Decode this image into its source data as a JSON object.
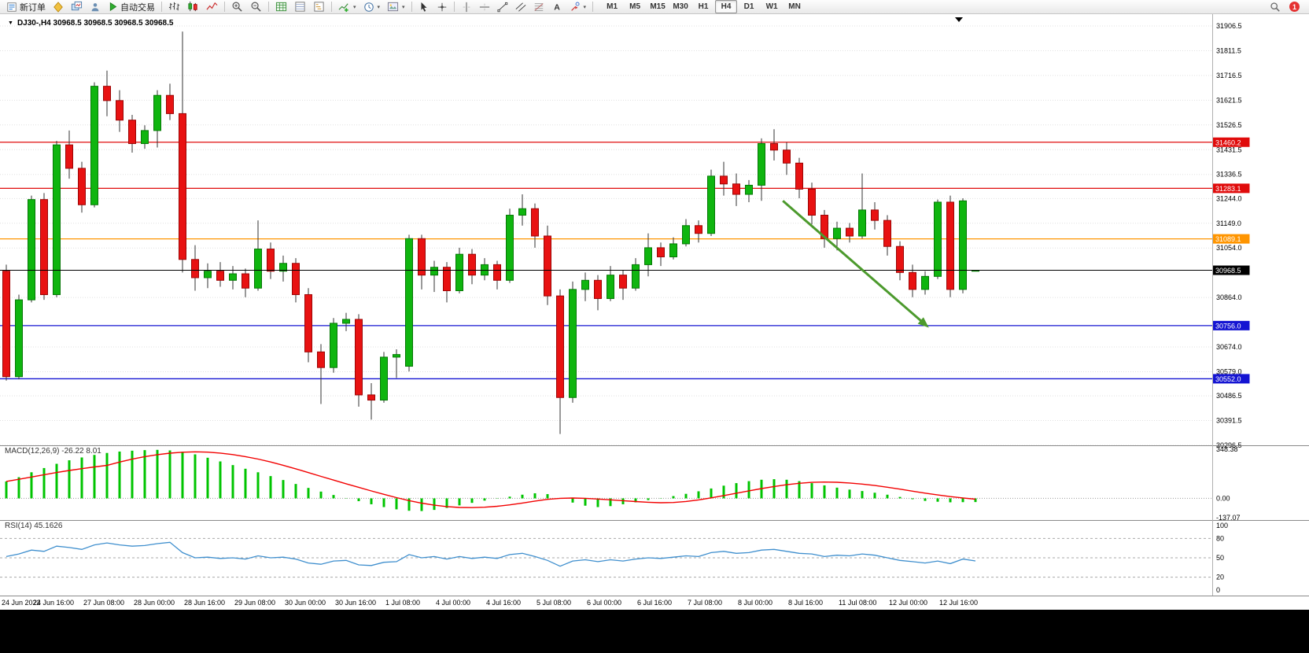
{
  "toolbar": {
    "new_order_label": "新订单",
    "autotrading_label": "自动交易",
    "timeframes": [
      "M1",
      "M5",
      "M15",
      "M30",
      "H1",
      "H4",
      "D1",
      "W1",
      "MN"
    ],
    "active_timeframe": "H4",
    "notification_count": "1"
  },
  "chart_data": {
    "type": "candlestick",
    "symbol": "DJ30-",
    "timeframe": "H4",
    "title": "DJ30-,H4 30968.5 30968.5 30968.5 30968.5",
    "current_price": "30968.5",
    "ylim": [
      30296.5,
      31906.5
    ],
    "y_ticks": [
      "31906.5",
      "31811.5",
      "31716.5",
      "31621.5",
      "31526.5",
      "31431.5",
      "31336.5",
      "31244.0",
      "31149.0",
      "31054.0",
      "30864.0",
      "30674.0",
      "30579.0",
      "30486.5",
      "30391.5",
      "30296.5"
    ],
    "time_labels": [
      "24 Jun 2022",
      "24 Jun 16:00",
      "27 Jun 08:00",
      "28 Jun 00:00",
      "28 Jun 16:00",
      "29 Jun 08:00",
      "30 Jun 00:00",
      "30 Jun 16:00",
      "1 Jul 08:00",
      "4 Jul 00:00",
      "4 Jul 16:00",
      "5 Jul 08:00",
      "6 Jul 00:00",
      "6 Jul 16:00",
      "7 Jul 08:00",
      "8 Jul 00:00",
      "8 Jul 16:00",
      "11 Jul 08:00",
      "12 Jul 00:00",
      "12 Jul 16:00"
    ],
    "label_every": 4,
    "colors": {
      "up": "#0fb50f",
      "up_border": "#067806",
      "down": "#e81212",
      "down_border": "#9c0505",
      "wick": "#333333",
      "macd": "#00c400",
      "macd_signal": "#f20000",
      "rsi": "#3f8fce",
      "grid": "#e0e0e0"
    },
    "candles": [
      [
        30965,
        30990,
        30545,
        30560
      ],
      [
        30560,
        30875,
        30550,
        30855
      ],
      [
        30855,
        31255,
        30845,
        31240
      ],
      [
        31240,
        31265,
        30855,
        30875
      ],
      [
        30875,
        31465,
        30865,
        31450
      ],
      [
        31450,
        31505,
        31320,
        31360
      ],
      [
        31360,
        31385,
        31190,
        31220
      ],
      [
        31220,
        31690,
        31210,
        31675
      ],
      [
        31675,
        31735,
        31560,
        31620
      ],
      [
        31620,
        31660,
        31500,
        31545
      ],
      [
        31545,
        31565,
        31420,
        31455
      ],
      [
        31455,
        31525,
        31435,
        31505
      ],
      [
        31505,
        31660,
        31440,
        31640
      ],
      [
        31640,
        31685,
        31545,
        31570
      ],
      [
        31570,
        31885,
        30960,
        31010
      ],
      [
        31010,
        31065,
        30890,
        30940
      ],
      [
        30940,
        30995,
        30900,
        30965
      ],
      [
        30965,
        31000,
        30905,
        30930
      ],
      [
        30930,
        30985,
        30895,
        30955
      ],
      [
        30955,
        30975,
        30865,
        30900
      ],
      [
        30900,
        31160,
        30890,
        31050
      ],
      [
        31050,
        31075,
        30935,
        30965
      ],
      [
        30965,
        31025,
        30925,
        30995
      ],
      [
        30995,
        31015,
        30845,
        30875
      ],
      [
        30875,
        30900,
        30615,
        30655
      ],
      [
        30655,
        30685,
        30455,
        30595
      ],
      [
        30595,
        30785,
        30575,
        30765
      ],
      [
        30765,
        30805,
        30735,
        30780
      ],
      [
        30780,
        30800,
        30445,
        30490
      ],
      [
        30490,
        30535,
        30395,
        30470
      ],
      [
        30470,
        30655,
        30460,
        30635
      ],
      [
        30635,
        30665,
        30555,
        30645
      ],
      [
        30600,
        31105,
        30580,
        31090
      ],
      [
        31090,
        31105,
        30895,
        30950
      ],
      [
        30950,
        31005,
        30885,
        30980
      ],
      [
        30980,
        31000,
        30845,
        30890
      ],
      [
        30890,
        31055,
        30880,
        31030
      ],
      [
        31030,
        31050,
        30915,
        30950
      ],
      [
        30950,
        31015,
        30930,
        30990
      ],
      [
        30990,
        31005,
        30895,
        30930
      ],
      [
        30930,
        31205,
        30920,
        31180
      ],
      [
        31180,
        31260,
        31140,
        31205
      ],
      [
        31205,
        31225,
        31055,
        31100
      ],
      [
        31100,
        31140,
        30835,
        30870
      ],
      [
        30870,
        30895,
        30340,
        30480
      ],
      [
        30480,
        30925,
        30460,
        30895
      ],
      [
        30895,
        30960,
        30850,
        30930
      ],
      [
        30930,
        30950,
        30815,
        30860
      ],
      [
        30860,
        30985,
        30850,
        30950
      ],
      [
        30950,
        30970,
        30855,
        30900
      ],
      [
        30900,
        31015,
        30890,
        30990
      ],
      [
        30990,
        31110,
        30945,
        31055
      ],
      [
        31055,
        31075,
        30985,
        31020
      ],
      [
        31020,
        31095,
        31010,
        31070
      ],
      [
        31070,
        31165,
        31060,
        31140
      ],
      [
        31140,
        31160,
        31075,
        31110
      ],
      [
        31110,
        31355,
        31100,
        31330
      ],
      [
        31330,
        31385,
        31255,
        31300
      ],
      [
        31300,
        31340,
        31215,
        31260
      ],
      [
        31260,
        31315,
        31230,
        31295
      ],
      [
        31295,
        31475,
        31235,
        31455
      ],
      [
        31455,
        31510,
        31390,
        31430
      ],
      [
        31430,
        31460,
        31335,
        31380
      ],
      [
        31380,
        31400,
        31245,
        31280
      ],
      [
        31280,
        31305,
        31145,
        31180
      ],
      [
        31180,
        31200,
        31055,
        31090
      ],
      [
        31090,
        31155,
        31045,
        31130
      ],
      [
        31130,
        31150,
        31075,
        31100
      ],
      [
        31100,
        31340,
        31090,
        31200
      ],
      [
        31200,
        31230,
        31125,
        31160
      ],
      [
        31160,
        31180,
        31025,
        31060
      ],
      [
        31060,
        31080,
        30930,
        30960
      ],
      [
        30960,
        30990,
        30865,
        30895
      ],
      [
        30895,
        30965,
        30875,
        30945
      ],
      [
        30945,
        31240,
        30935,
        31230
      ],
      [
        31230,
        31255,
        30865,
        30895
      ],
      [
        30895,
        31245,
        30880,
        31235
      ],
      [
        30968.5,
        30968.5,
        30968.5,
        30968.5
      ]
    ],
    "hlines": [
      {
        "price": "31460.2",
        "color": "#e00b0b"
      },
      {
        "price": "31283.1",
        "color": "#e00b0b"
      },
      {
        "price": "31089.1",
        "color": "#ff9500"
      },
      {
        "price": "30756.0",
        "color": "#1414d2"
      },
      {
        "price": "30552.0",
        "color": "#1414d2"
      }
    ],
    "price_line": {
      "price": "30968.5",
      "color": "#000000"
    },
    "arrow": {
      "from": {
        "bar": 61.7,
        "price": 31235
      },
      "to": {
        "bar": 73.3,
        "price": 30748
      },
      "color": "#4c9a2d"
    },
    "macd": {
      "label": "MACD(12,26,9) -26.22 8.01",
      "range": [
        -137.07,
        348.38
      ],
      "axis": [
        "348.38",
        "0.00",
        "-137.07"
      ],
      "histogram": [
        120,
        150,
        185,
        215,
        245,
        270,
        290,
        308,
        322,
        332,
        338,
        342,
        344,
        340,
        330,
        312,
        288,
        262,
        236,
        210,
        185,
        158,
        130,
        102,
        74,
        48,
        24,
        2,
        -20,
        -42,
        -62,
        -78,
        -88,
        -90,
        -82,
        -68,
        -50,
        -32,
        -16,
        -2,
        12,
        26,
        36,
        30,
        0,
        -30,
        -52,
        -62,
        -55,
        -42,
        -28,
        -12,
        2,
        16,
        32,
        50,
        70,
        90,
        108,
        122,
        132,
        136,
        132,
        122,
        108,
        92,
        76,
        62,
        52,
        40,
        26,
        10,
        -6,
        -18,
        -24,
        -28,
        -27,
        -26.22
      ]
    },
    "rsi": {
      "label": "RSI(14) 45.1626",
      "value": 45.1626,
      "levels": [
        80,
        50,
        20
      ],
      "axis_labels": [
        "100",
        "80",
        "50",
        "20",
        "0"
      ],
      "values": [
        52,
        56,
        62,
        60,
        68,
        66,
        63,
        70,
        73,
        70,
        68,
        69,
        72,
        74,
        58,
        50,
        51,
        49,
        50,
        48,
        53,
        50,
        51,
        48,
        42,
        40,
        45,
        46,
        39,
        38,
        43,
        44,
        55,
        50,
        52,
        48,
        52,
        49,
        51,
        49,
        55,
        57,
        52,
        46,
        37,
        45,
        47,
        44,
        47,
        45,
        48,
        50,
        49,
        51,
        53,
        52,
        58,
        60,
        57,
        58,
        62,
        63,
        60,
        57,
        56,
        52,
        54,
        53,
        56,
        54,
        50,
        46,
        44,
        42,
        45,
        41,
        48,
        45.16
      ]
    }
  }
}
